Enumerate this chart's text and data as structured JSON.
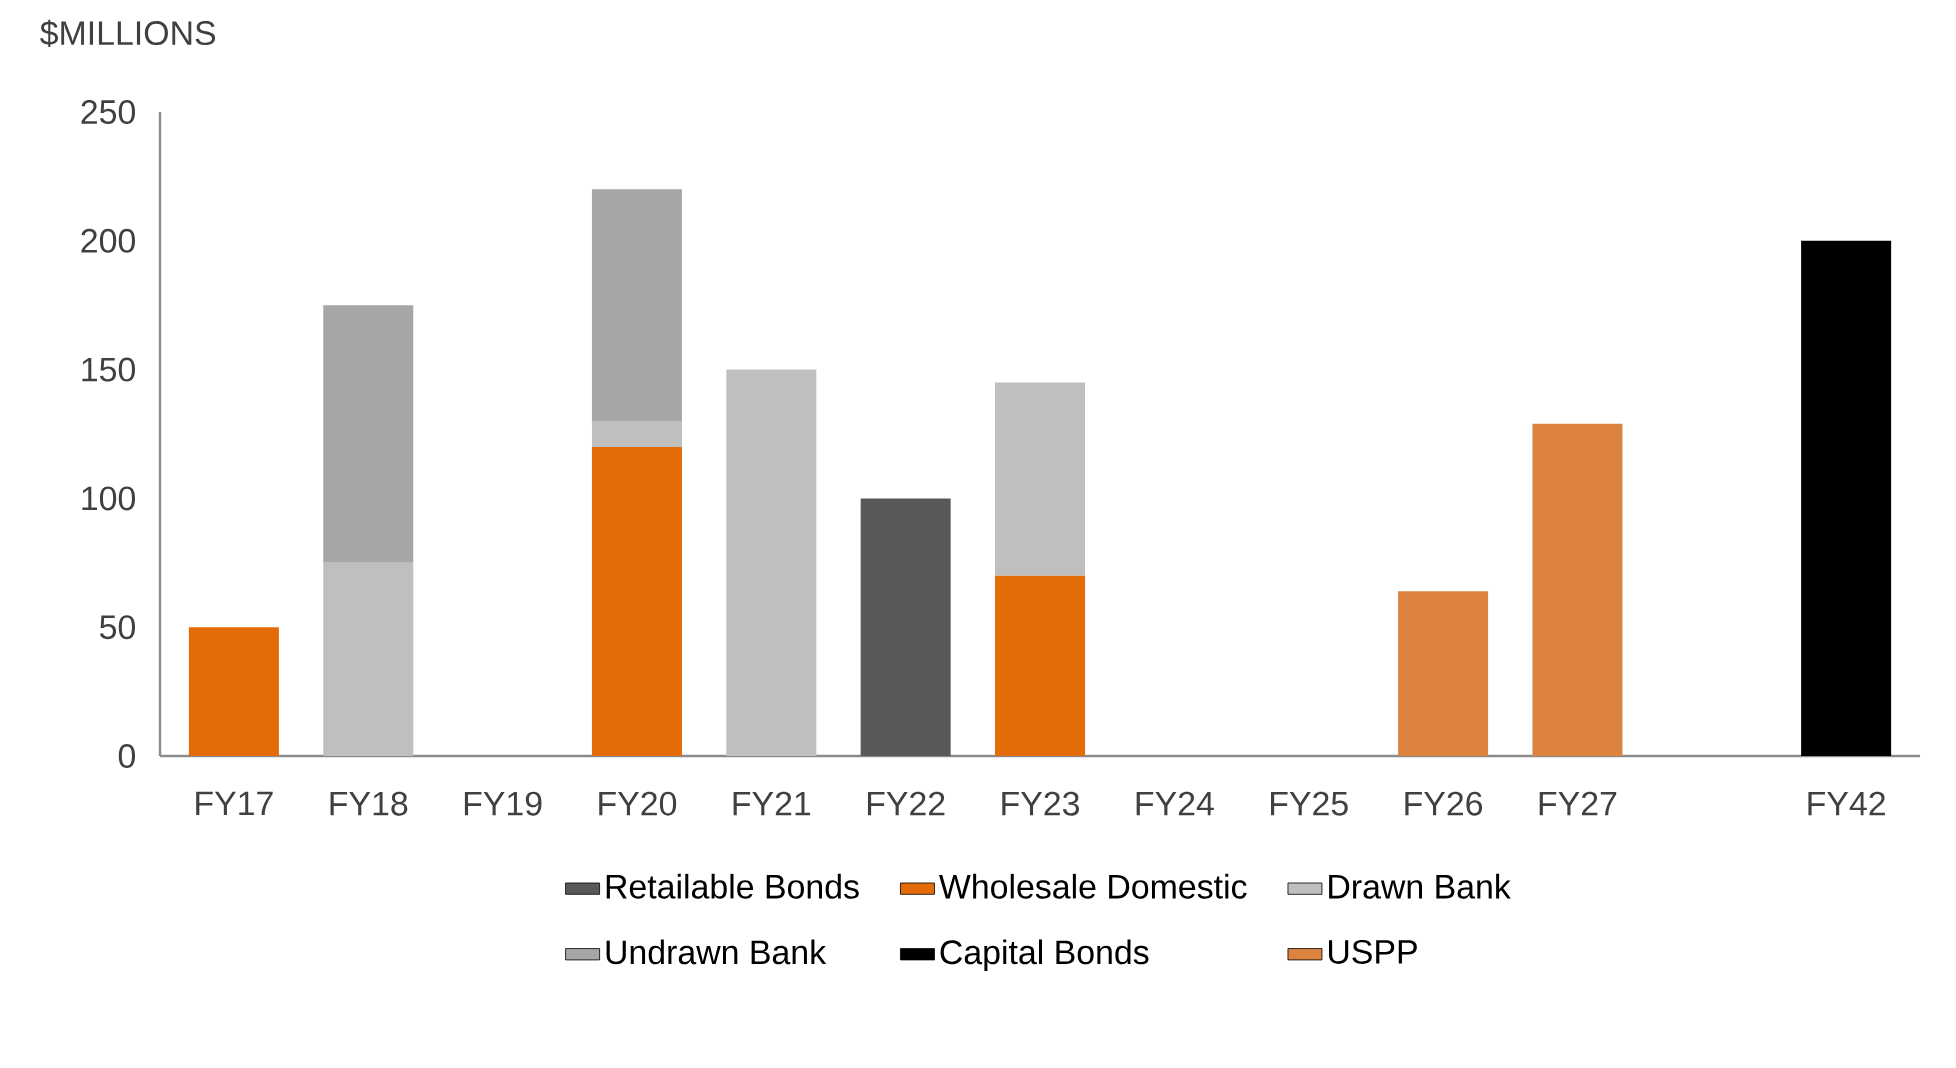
{
  "chart_data": {
    "type": "bar",
    "stacked": true,
    "ylabel": "$MILLIONS",
    "categories": [
      "FY17",
      "FY18",
      "FY19",
      "FY20",
      "FY21",
      "FY22",
      "FY23",
      "FY24",
      "FY25",
      "FY26",
      "FY27",
      null,
      "FY42"
    ],
    "series": [
      {
        "name": "Retailable Bonds",
        "color": "#595959",
        "values": [
          null,
          null,
          null,
          null,
          null,
          100,
          null,
          null,
          null,
          null,
          null,
          null,
          null
        ]
      },
      {
        "name": "Wholesale Domestic",
        "color": "#e36c09",
        "values": [
          50,
          null,
          null,
          120,
          null,
          null,
          70,
          null,
          null,
          null,
          null,
          null,
          null
        ]
      },
      {
        "name": "Drawn Bank",
        "color": "#bfbfbf",
        "values": [
          null,
          75,
          null,
          10,
          150,
          null,
          75,
          null,
          null,
          null,
          null,
          null,
          null
        ]
      },
      {
        "name": "Undrawn Bank",
        "color": "#a6a6a6",
        "values": [
          null,
          100,
          null,
          90,
          null,
          null,
          null,
          null,
          null,
          null,
          null,
          null,
          null
        ]
      },
      {
        "name": "Capital Bonds",
        "color": "#000000",
        "values": [
          null,
          null,
          null,
          null,
          null,
          null,
          null,
          null,
          null,
          null,
          null,
          null,
          200
        ]
      },
      {
        "name": "USPP",
        "color": "#dc843f",
        "values": [
          null,
          null,
          null,
          null,
          null,
          null,
          null,
          null,
          null,
          64,
          129,
          null,
          null
        ]
      }
    ],
    "ylim": [
      0,
      250
    ],
    "yticks": [
      0,
      50,
      100,
      150,
      200,
      250
    ],
    "grid": false,
    "legend": "bottom"
  }
}
